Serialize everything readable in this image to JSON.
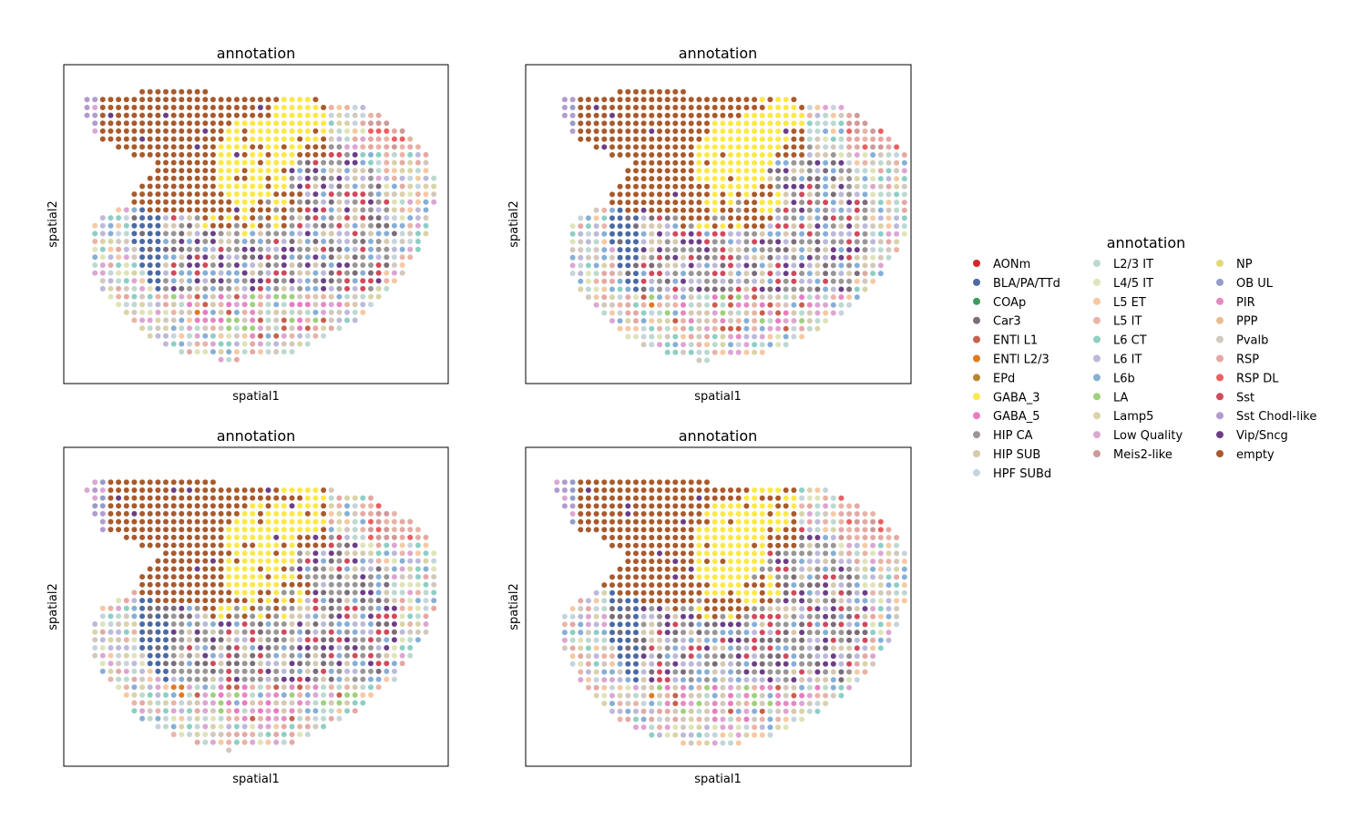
{
  "figure": {
    "legend": {
      "title": "annotation",
      "placement": "right"
    }
  },
  "chart_data": [
    {
      "type": "scatter",
      "title": "annotation",
      "xlabel": "spatial1",
      "ylabel": "spatial2",
      "hue": "annotation",
      "grid": false,
      "ticks": false,
      "panel": "top-left"
    },
    {
      "type": "scatter",
      "title": "annotation",
      "xlabel": "spatial1",
      "ylabel": "spatial2",
      "hue": "annotation",
      "grid": false,
      "ticks": false,
      "panel": "top-right"
    },
    {
      "type": "scatter",
      "title": "annotation",
      "xlabel": "spatial1",
      "ylabel": "spatial2",
      "hue": "annotation",
      "grid": false,
      "ticks": false,
      "panel": "bottom-left"
    },
    {
      "type": "scatter",
      "title": "annotation",
      "xlabel": "spatial1",
      "ylabel": "spatial2",
      "hue": "annotation",
      "grid": false,
      "ticks": false,
      "panel": "bottom-right"
    }
  ],
  "categories": [
    {
      "label": "AONm",
      "color": "#d62728"
    },
    {
      "label": "BLA/PA/TTd",
      "color": "#4a6aa5"
    },
    {
      "label": "COAp",
      "color": "#3f9b5f"
    },
    {
      "label": "Car3",
      "color": "#7a6d78"
    },
    {
      "label": "ENTl L1",
      "color": "#c8604d"
    },
    {
      "label": "ENTl L2/3",
      "color": "#e07a1f"
    },
    {
      "label": "EPd",
      "color": "#b8862f"
    },
    {
      "label": "GABA_3",
      "color": "#fbe84a"
    },
    {
      "label": "GABA_5",
      "color": "#e87cc2"
    },
    {
      "label": "HIP CA",
      "color": "#9a9696"
    },
    {
      "label": "HIP SUB",
      "color": "#d6c9b0"
    },
    {
      "label": "HPF SUBd",
      "color": "#c6d4db"
    },
    {
      "label": "L2/3 IT",
      "color": "#bcd9cf"
    },
    {
      "label": "L4/5 IT",
      "color": "#dfe4b8"
    },
    {
      "label": "L5 ET",
      "color": "#f6c9a2"
    },
    {
      "label": "L5 IT",
      "color": "#e9b4a7"
    },
    {
      "label": "L6 CT",
      "color": "#8dcfc4"
    },
    {
      "label": "L6 IT",
      "color": "#bcb9d9"
    },
    {
      "label": "L6b",
      "color": "#87afd6"
    },
    {
      "label": "LA",
      "color": "#9fd17c"
    },
    {
      "label": "Lamp5",
      "color": "#d9d3a8"
    },
    {
      "label": "Low Quality",
      "color": "#dca6d2"
    },
    {
      "label": "Meis2-like",
      "color": "#cf9a9a"
    },
    {
      "label": "NP",
      "color": "#e4d77a"
    },
    {
      "label": "OB UL",
      "color": "#959cca"
    },
    {
      "label": "PIR",
      "color": "#e58ac1"
    },
    {
      "label": "PPP",
      "color": "#e8bd91"
    },
    {
      "label": "Pvalb",
      "color": "#d2c8bd"
    },
    {
      "label": "RSP",
      "color": "#e4a9a4"
    },
    {
      "label": "RSP DL",
      "color": "#ec5f5f"
    },
    {
      "label": "Sst",
      "color": "#d1495b"
    },
    {
      "label": "Sst Chodl-like",
      "color": "#b19bcf"
    },
    {
      "label": "Vip/Sncg",
      "color": "#6b3f86"
    },
    {
      "label": "empty",
      "color": "#a95a2c"
    }
  ]
}
